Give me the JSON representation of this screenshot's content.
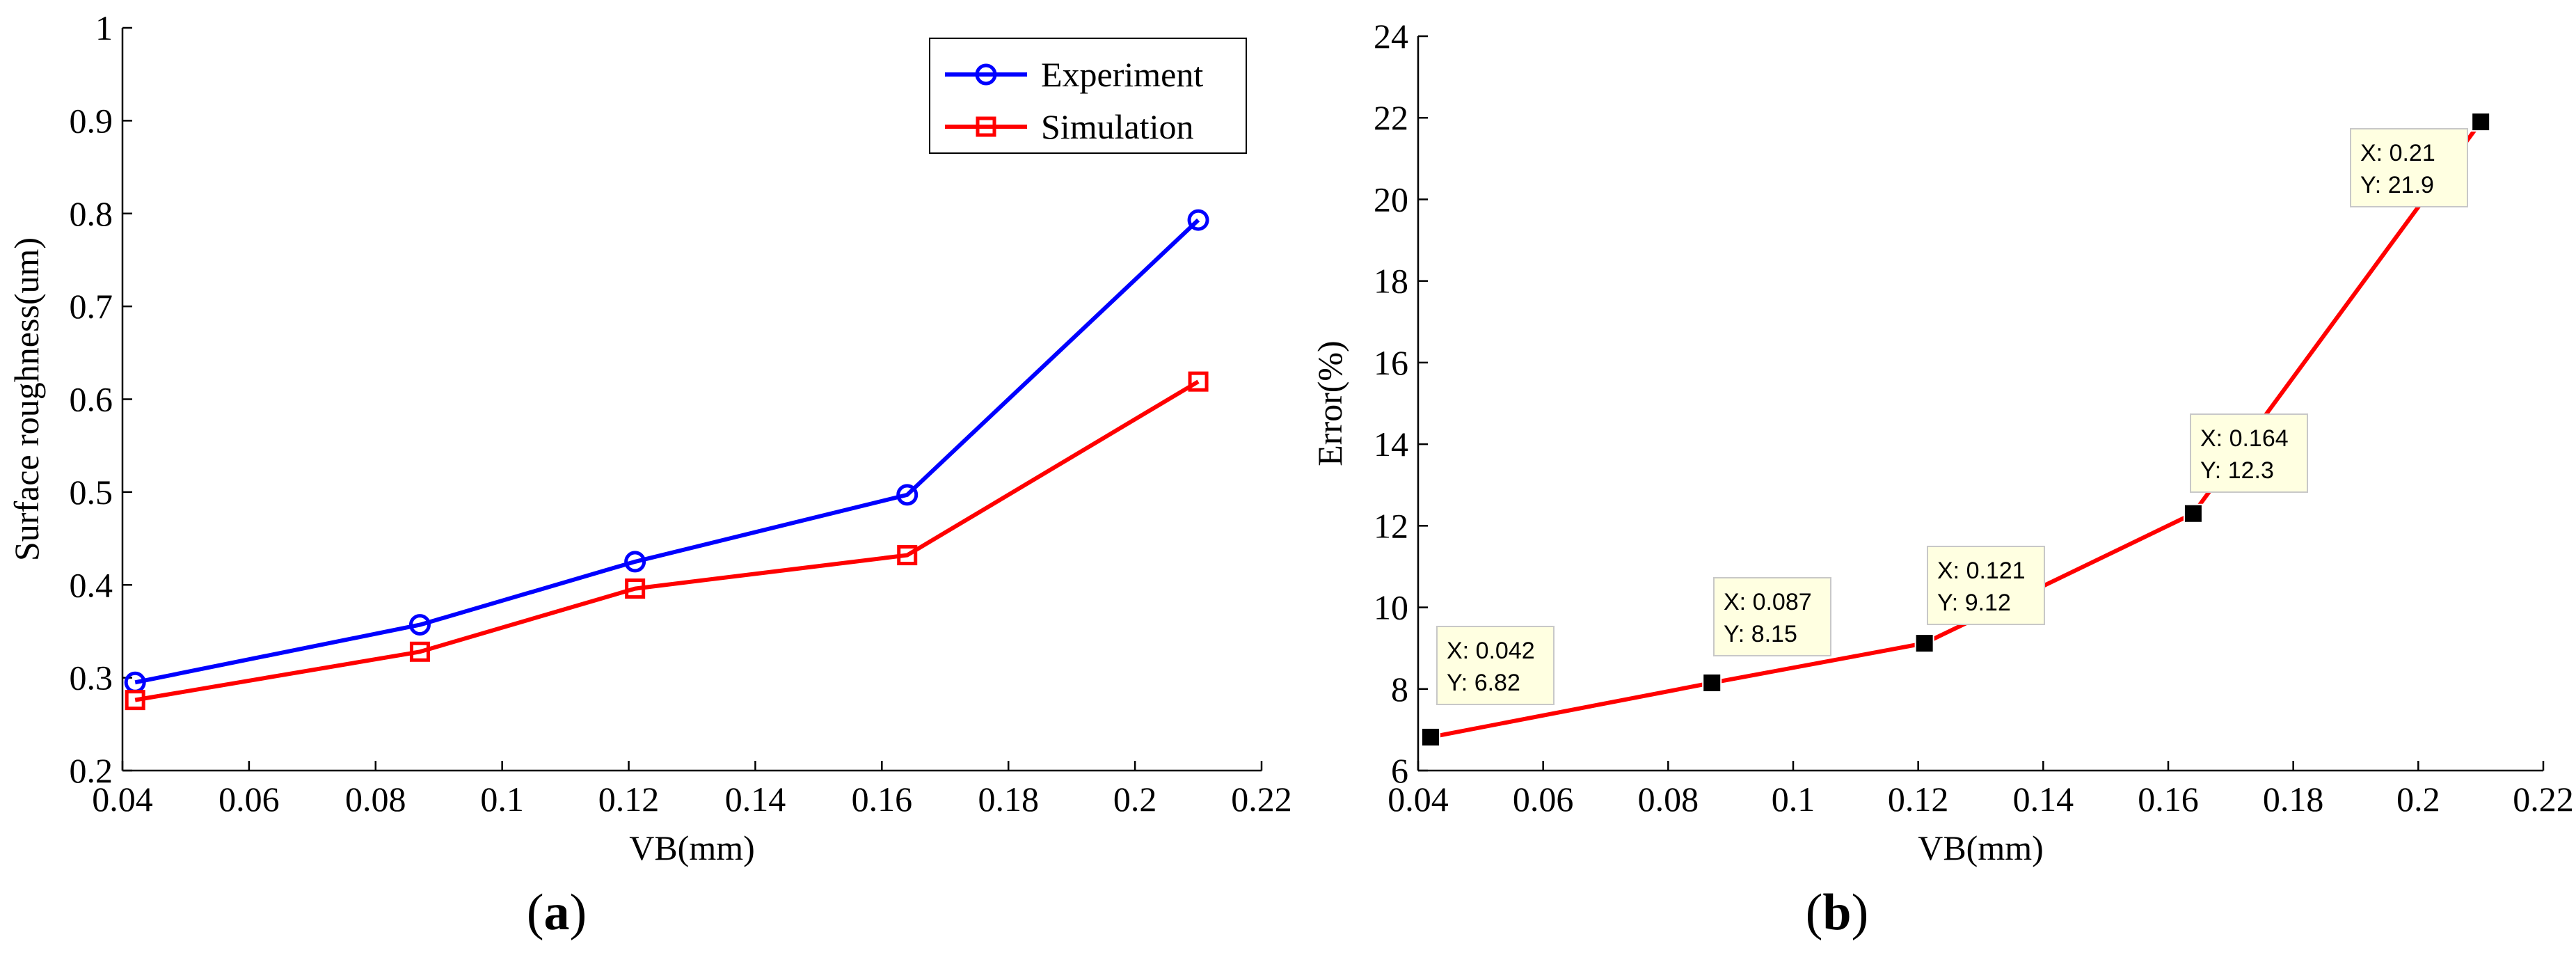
{
  "chart_data": [
    {
      "id": "a",
      "type": "line",
      "panel_prefix": "(",
      "panel_letter": "a",
      "panel_suffix": ")",
      "xlabel": "VB(mm)",
      "ylabel": "Surface roughness(um)",
      "xlim": [
        0.04,
        0.22
      ],
      "ylim": [
        0.2,
        1.0
      ],
      "x_ticks": [
        "0.04",
        "0.06",
        "0.08",
        "0.1",
        "0.12",
        "0.14",
        "0.16",
        "0.18",
        "0.2",
        "0.22"
      ],
      "y_ticks": [
        "0.2",
        "0.3",
        "0.4",
        "0.5",
        "0.6",
        "0.7",
        "0.8",
        "0.9",
        "1"
      ],
      "x_tick_values": [
        0.04,
        0.06,
        0.08,
        0.1,
        0.12,
        0.14,
        0.16,
        0.18,
        0.2,
        0.22
      ],
      "y_tick_values": [
        0.2,
        0.3,
        0.4,
        0.5,
        0.6,
        0.7,
        0.8,
        0.9,
        1.0
      ],
      "grid": false,
      "legend_position": "top-right",
      "series": [
        {
          "name": "Experiment",
          "color": "#0000ff",
          "marker": "circle",
          "x": [
            0.042,
            0.087,
            0.121,
            0.164,
            0.21
          ],
          "y": [
            0.295,
            0.357,
            0.425,
            0.497,
            0.793
          ]
        },
        {
          "name": "Simulation",
          "color": "#ff0000",
          "marker": "square",
          "x": [
            0.042,
            0.087,
            0.121,
            0.164,
            0.21
          ],
          "y": [
            0.276,
            0.328,
            0.396,
            0.432,
            0.619
          ]
        }
      ]
    },
    {
      "id": "b",
      "type": "line",
      "panel_prefix": "(",
      "panel_letter": "b",
      "panel_suffix": ")",
      "xlabel": "VB(mm)",
      "ylabel": "Error(%)",
      "xlim": [
        0.04,
        0.22
      ],
      "ylim": [
        6,
        24
      ],
      "x_ticks": [
        "0.04",
        "0.06",
        "0.08",
        "0.1",
        "0.12",
        "0.14",
        "0.16",
        "0.18",
        "0.2",
        "0.22"
      ],
      "y_ticks": [
        "6",
        "8",
        "10",
        "12",
        "14",
        "16",
        "18",
        "20",
        "22",
        "24"
      ],
      "x_tick_values": [
        0.04,
        0.06,
        0.08,
        0.1,
        0.12,
        0.14,
        0.16,
        0.18,
        0.2,
        0.22
      ],
      "y_tick_values": [
        6,
        8,
        10,
        12,
        14,
        16,
        18,
        20,
        22,
        24
      ],
      "grid": false,
      "series": [
        {
          "name": "Error",
          "color": "#ff0000",
          "marker": "filled-square",
          "x": [
            0.042,
            0.087,
            0.121,
            0.164,
            0.21
          ],
          "y": [
            6.82,
            8.15,
            9.12,
            12.3,
            21.9
          ]
        }
      ],
      "datatips": [
        {
          "x": 0.042,
          "y": 6.82,
          "x_text": "X: 0.042",
          "y_text": "Y: 6.82"
        },
        {
          "x": 0.087,
          "y": 8.15,
          "x_text": "X: 0.087",
          "y_text": "Y: 8.15"
        },
        {
          "x": 0.121,
          "y": 9.12,
          "x_text": "X: 0.121",
          "y_text": "Y: 9.12"
        },
        {
          "x": 0.164,
          "y": 12.3,
          "x_text": "X: 0.164",
          "y_text": "Y: 12.3"
        },
        {
          "x": 0.21,
          "y": 21.9,
          "x_text": "X: 0.21",
          "y_text": "Y: 21.9"
        }
      ],
      "datatip_bg": "#ffffe1"
    }
  ]
}
